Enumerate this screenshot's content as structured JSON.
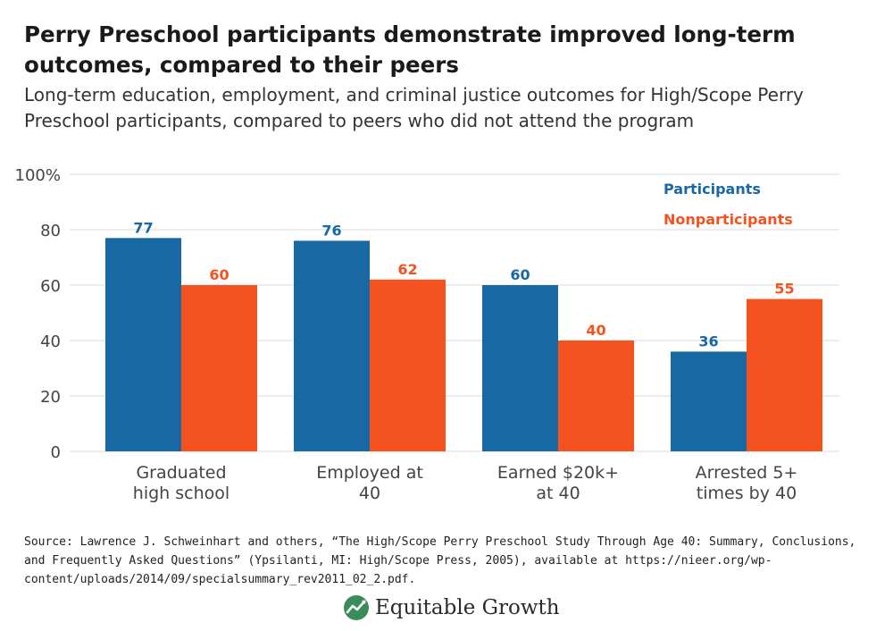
{
  "title": "Perry Preschool participants demonstrate improved long-term outcomes, compared to their peers",
  "subtitle": "Long-term education, employment, and criminal justice outcomes for High/Scope Perry Preschool participants, compared to peers who did not attend the program",
  "source": "Source: Lawrence J. Schweinhart and others, “The High/Scope Perry Preschool Study Through Age 40: Summary, Conclusions, and Frequently Asked Questions” (Ypsilanti, MI: High/Scope Press, 2005), available at https://nieer.org/wp-content/uploads/2014/09/specialsummary_rev2011_02_2.pdf.",
  "logo": {
    "text": "Equitable Growth",
    "icon": "growth-chart-icon"
  },
  "colors": {
    "participants": "#1868a3",
    "nonparticipants": "#f4521e",
    "axis_text": "#444444",
    "gridline": "#d9d9d9"
  },
  "chart_data": {
    "type": "bar",
    "categories": [
      [
        "Graduated",
        "high school"
      ],
      [
        "Employed at",
        "40"
      ],
      [
        "Earned $20k+",
        "at 40"
      ],
      [
        "Arrested 5+",
        "times by 40"
      ]
    ],
    "series": [
      {
        "name": "Participants",
        "values": [
          77,
          76,
          60,
          36
        ]
      },
      {
        "name": "Nonparticipants",
        "values": [
          60,
          62,
          40,
          55
        ]
      }
    ],
    "yticks": [
      "0",
      "20",
      "40",
      "60",
      "80",
      "100%"
    ],
    "ylim": [
      0,
      100
    ],
    "legend_position": "top-right",
    "grid": true
  }
}
